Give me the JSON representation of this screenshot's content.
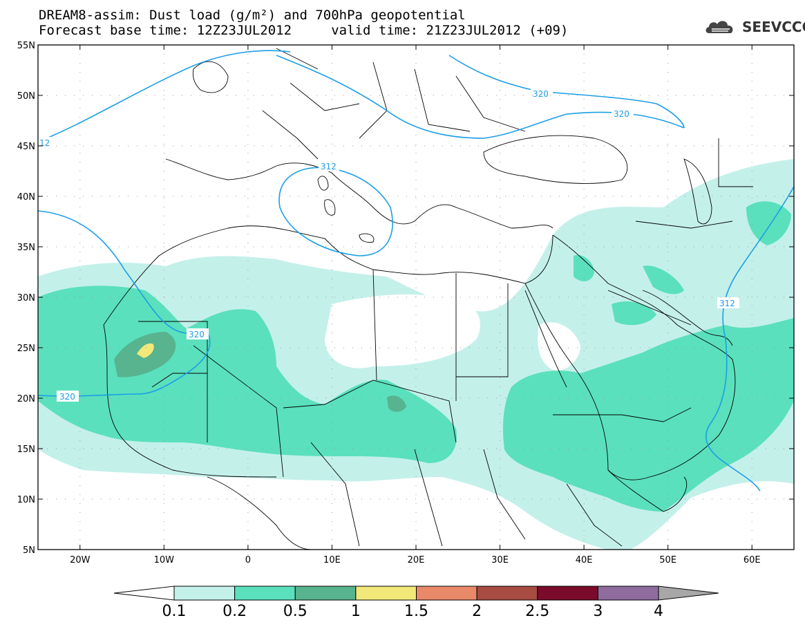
{
  "header": {
    "title_line1": "DREAM8-assim: Dust load (g/m²) and 700hPa geopotential",
    "title_line2": "Forecast base time: 12Z23JUL2012     valid time: 21Z23JUL2012 (+09)",
    "logo_text": "SEEVCCC",
    "logo_icon": "cloud-icon"
  },
  "map": {
    "lon_ticks": [
      "20W",
      "10W",
      "0",
      "10E",
      "20E",
      "30E",
      "40E",
      "50E",
      "60E"
    ],
    "lat_ticks": [
      "55N",
      "50N",
      "45N",
      "40N",
      "35N",
      "30N",
      "25N",
      "20N",
      "15N",
      "10N",
      "5N"
    ],
    "lon_range": [
      -25,
      65
    ],
    "lat_range": [
      5,
      55
    ],
    "contour_labels": [
      "320",
      "320",
      "312",
      "320",
      "320",
      "312",
      "12"
    ],
    "contour_color": "#1a9ee8"
  },
  "colorbar": {
    "tick_labels": [
      "0.1",
      "0.2",
      "0.5",
      "1",
      "1.5",
      "2",
      "2.5",
      "3",
      "4"
    ],
    "colors": [
      "#ffffff",
      "#c4f0ea",
      "#5ae0bc",
      "#57b48f",
      "#f2e87a",
      "#e8896a",
      "#a84b42",
      "#7a0b2a",
      "#8e6c9e",
      "#a7a7a7"
    ]
  }
}
